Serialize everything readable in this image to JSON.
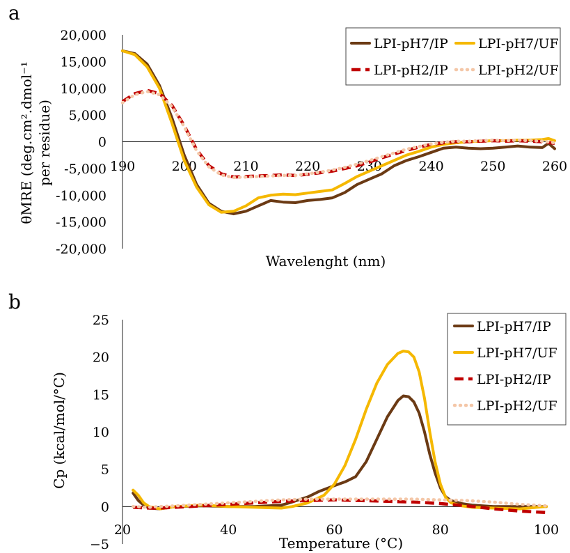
{
  "chart_data": [
    {
      "panel": "a",
      "type": "line",
      "xlabel": "Wavelenght (nm)",
      "ylabel": "θMRE (deg.cm².dmol⁻¹ per residue)",
      "ylabel_line1": "θMRE (deg.cm².dmol⁻¹",
      "ylabel_line2": "per residue)",
      "xlim": [
        190,
        260
      ],
      "ylim": [
        -20000,
        20000
      ],
      "x_ticks": [
        190,
        200,
        210,
        220,
        230,
        240,
        250,
        260
      ],
      "x_tick_labels": [
        "190",
        "200",
        "210",
        "220",
        "230",
        "240",
        "250",
        "260"
      ],
      "y_ticks": [
        20000,
        15000,
        10000,
        5000,
        0,
        -5000,
        -10000,
        -15000,
        -20000
      ],
      "y_tick_labels": [
        "20,000",
        "15,000",
        "10,000",
        "5,000",
        "0",
        "-5,000",
        "-10,000",
        "-15,000",
        "-20,000"
      ],
      "legend_position": "top-right",
      "series": [
        {
          "name": "LPI-pH7/IP",
          "color": "#6b3a14",
          "style": "solid",
          "x": [
            190,
            192,
            194,
            196,
            198,
            200,
            202,
            204,
            206,
            208,
            210,
            212,
            214,
            216,
            218,
            220,
            222,
            224,
            226,
            228,
            230,
            232,
            234,
            236,
            238,
            240,
            242,
            244,
            246,
            248,
            250,
            252,
            254,
            256,
            258,
            259,
            260
          ],
          "y": [
            17000,
            16500,
            14500,
            10500,
            4500,
            -2500,
            -8000,
            -11500,
            -13000,
            -13500,
            -13000,
            -12000,
            -11000,
            -11300,
            -11400,
            -11000,
            -10800,
            -10500,
            -9500,
            -8000,
            -7000,
            -6000,
            -4500,
            -3500,
            -2800,
            -2000,
            -1200,
            -1000,
            -1200,
            -1300,
            -1200,
            -1000,
            -800,
            -1000,
            -1100,
            -300,
            -1300
          ]
        },
        {
          "name": "LPI-pH7/UF",
          "color": "#f5b800",
          "style": "solid",
          "x": [
            190,
            192,
            194,
            196,
            198,
            200,
            202,
            204,
            206,
            208,
            210,
            212,
            214,
            216,
            218,
            220,
            222,
            224,
            226,
            228,
            230,
            232,
            234,
            236,
            238,
            240,
            242,
            244,
            246,
            248,
            250,
            252,
            254,
            256,
            258,
            259,
            260
          ],
          "y": [
            17000,
            16300,
            14000,
            10000,
            3500,
            -3500,
            -8500,
            -11800,
            -13200,
            -13000,
            -12000,
            -10500,
            -10000,
            -9800,
            -9900,
            -9600,
            -9300,
            -9000,
            -7800,
            -6500,
            -5500,
            -4500,
            -3500,
            -2500,
            -1800,
            -1000,
            -500,
            -200,
            0,
            100,
            200,
            200,
            300,
            300,
            400,
            600,
            200
          ]
        },
        {
          "name": "LPI-pH2/IP",
          "color": "#c00000",
          "style": "dashed",
          "x": [
            190,
            192,
            194,
            196,
            198,
            200,
            202,
            204,
            206,
            208,
            210,
            212,
            214,
            216,
            218,
            220,
            222,
            224,
            226,
            228,
            230,
            232,
            234,
            236,
            238,
            240,
            242,
            244,
            246,
            248,
            250,
            252,
            254,
            256,
            258,
            260
          ],
          "y": [
            7500,
            9000,
            9600,
            9000,
            6800,
            3000,
            -1500,
            -4500,
            -6000,
            -6600,
            -6500,
            -6400,
            -6300,
            -6200,
            -6300,
            -6100,
            -5800,
            -5500,
            -5000,
            -4500,
            -3800,
            -3000,
            -2300,
            -1600,
            -1000,
            -500,
            -200,
            0,
            0,
            100,
            200,
            100,
            200,
            100,
            0,
            -300
          ]
        },
        {
          "name": "LPI-pH2/UF",
          "color": "#f4c7a8",
          "style": "dotted",
          "x": [
            190,
            192,
            194,
            196,
            198,
            200,
            202,
            204,
            206,
            208,
            210,
            212,
            214,
            216,
            218,
            220,
            222,
            224,
            226,
            228,
            230,
            232,
            234,
            236,
            238,
            240,
            242,
            244,
            246,
            248,
            250,
            252,
            254,
            256,
            258,
            260
          ],
          "y": [
            7300,
            8800,
            9400,
            8800,
            6600,
            2800,
            -1700,
            -4700,
            -6200,
            -6700,
            -6600,
            -6500,
            -6400,
            -6300,
            -6300,
            -6000,
            -5700,
            -5300,
            -4800,
            -4200,
            -3500,
            -2800,
            -2100,
            -1400,
            -900,
            -400,
            -100,
            100,
            100,
            200,
            300,
            200,
            300,
            200,
            100,
            -200
          ]
        }
      ]
    },
    {
      "panel": "b",
      "type": "line",
      "xlabel": "Temperature (°C)",
      "ylabel": "Cp (kcal/mol/°C)",
      "xlim": [
        20,
        100
      ],
      "ylim": [
        -5,
        25
      ],
      "x_ticks": [
        20,
        40,
        60,
        80,
        100
      ],
      "x_tick_labels": [
        "20",
        "40",
        "60",
        "80",
        "100"
      ],
      "y_ticks": [
        25,
        20,
        15,
        10,
        5,
        0,
        -5
      ],
      "y_tick_labels": [
        "25",
        "20",
        "15",
        "10",
        "5",
        "0",
        "−5"
      ],
      "legend_position": "top-right",
      "series": [
        {
          "name": "LPI-pH7/IP",
          "color": "#6b3a14",
          "style": "solid",
          "x": [
            22,
            23,
            24,
            25,
            27,
            30,
            35,
            40,
            45,
            50,
            52,
            55,
            57,
            60,
            62,
            64,
            66,
            68,
            70,
            72,
            73,
            74,
            75,
            76,
            77,
            78,
            79,
            80,
            81,
            82,
            84,
            86,
            90,
            95,
            100
          ],
          "y": [
            1.8,
            0.8,
            0.2,
            -0.2,
            -0.3,
            0.0,
            0.1,
            0.0,
            0.0,
            0.2,
            0.6,
            1.3,
            2.0,
            2.8,
            3.3,
            4.0,
            6.0,
            9.0,
            12.0,
            14.2,
            14.8,
            14.7,
            14.0,
            12.5,
            10.0,
            7.0,
            4.5,
            2.5,
            1.3,
            0.8,
            0.4,
            0.2,
            0.0,
            0.0,
            0.0
          ]
        },
        {
          "name": "LPI-pH7/UF",
          "color": "#f5b800",
          "style": "solid",
          "x": [
            22,
            23,
            24,
            25,
            27,
            30,
            35,
            40,
            45,
            50,
            52,
            55,
            58,
            60,
            62,
            64,
            66,
            68,
            70,
            72,
            73,
            74,
            75,
            76,
            77,
            78,
            79,
            80,
            81,
            82,
            84,
            86,
            90,
            95,
            100
          ],
          "y": [
            2.2,
            1.5,
            0.5,
            0.0,
            -0.3,
            0.0,
            0.2,
            0.0,
            -0.1,
            -0.2,
            0.0,
            0.5,
            1.5,
            3.0,
            5.5,
            9.0,
            13.0,
            16.5,
            19.0,
            20.5,
            20.8,
            20.7,
            20.0,
            18.0,
            14.5,
            10.0,
            6.0,
            3.0,
            1.2,
            0.5,
            0.1,
            -0.1,
            -0.2,
            -0.3,
            0.0
          ]
        },
        {
          "name": "LPI-pH2/IP",
          "color": "#c00000",
          "style": "dashed",
          "x": [
            22,
            25,
            27,
            30,
            35,
            40,
            45,
            50,
            55,
            60,
            65,
            70,
            75,
            80,
            85,
            90,
            95,
            100
          ],
          "y": [
            -0.1,
            -0.2,
            -0.2,
            -0.1,
            0.1,
            0.3,
            0.5,
            0.7,
            0.8,
            0.9,
            0.8,
            0.7,
            0.6,
            0.4,
            0.1,
            -0.3,
            -0.6,
            -0.8
          ]
        },
        {
          "name": "LPI-pH2/UF",
          "color": "#f4c7a8",
          "style": "dotted",
          "x": [
            22,
            25,
            27,
            30,
            35,
            40,
            45,
            50,
            55,
            60,
            65,
            70,
            75,
            80,
            85,
            90,
            95,
            100
          ],
          "y": [
            0.0,
            -0.1,
            0.0,
            0.1,
            0.3,
            0.5,
            0.7,
            0.9,
            1.0,
            1.0,
            1.0,
            1.0,
            1.0,
            0.9,
            0.8,
            0.6,
            0.3,
            0.1
          ]
        }
      ]
    }
  ]
}
